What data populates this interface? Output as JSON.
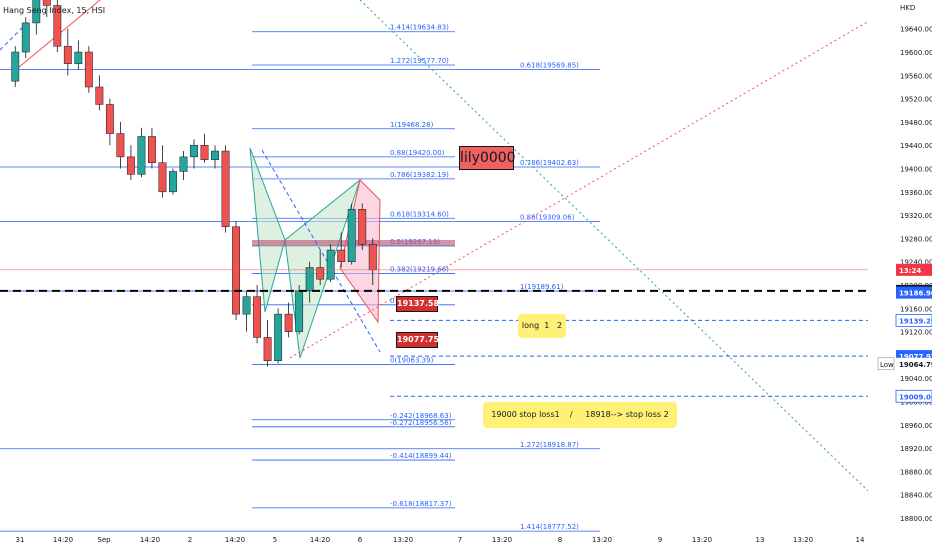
{
  "title": "Hang Seng Index, 15, HSI",
  "watermark": "lily0000",
  "currency": "HKD",
  "colors": {
    "up": "#26a69a",
    "down": "#ef5350",
    "fib": "#2962ff",
    "candle_up": "#ffffff",
    "candle_down": "#131722",
    "alert": "#f23645",
    "note_bg": "#fff176"
  },
  "chart_data": {
    "type": "candlestick",
    "title": "Hang Seng Index, 15, HSI",
    "ylim": [
      18790,
      19690
    ],
    "y_ticks": [
      "19640.00",
      "19600.00",
      "19560.00",
      "19520.00",
      "19480.00",
      "19440.00",
      "19400.00",
      "19360.00",
      "19320.00",
      "19280.00",
      "19240.00",
      "19200.00",
      "19160.00",
      "19120.00",
      "19080.00",
      "19040.00",
      "19000.00",
      "18960.00",
      "18920.00",
      "18880.00",
      "18840.00",
      "18800.00"
    ],
    "x_ticks": [
      "31",
      "14:20",
      "Sep",
      "14:20",
      "2",
      "14:20",
      "5",
      "14:20",
      "6",
      "13:20",
      "7",
      "13:20",
      "8",
      "13:20",
      "9",
      "13:20",
      "13",
      "13:20",
      "14"
    ],
    "price_tags": [
      {
        "label": "19189.96",
        "value": 19189.96,
        "style": "black"
      },
      {
        "label": "19186.96",
        "value": 19186.96,
        "style": "blue"
      },
      {
        "label": "19139.29",
        "value": 19139.29,
        "style": "blue-outline"
      },
      {
        "label": "19077.97",
        "value": 19077.97,
        "style": "blue"
      },
      {
        "label": "19064.79",
        "value": 19064.79,
        "style": "low"
      },
      {
        "label": "19009.00",
        "value": 19009.0,
        "style": "blue-outline"
      },
      {
        "label": "13:24",
        "value": 19226,
        "style": "red"
      }
    ],
    "low_label": "Low",
    "fib_levels_left": [
      {
        "label": "1.414(19634.83)",
        "value": 19634.83
      },
      {
        "label": "1.272(19577.70)",
        "value": 19577.7
      },
      {
        "label": "1(19468.28)",
        "value": 19468.28
      },
      {
        "label": "0.88(19420.00)",
        "value": 19420.0
      },
      {
        "label": "0.786(19382.19)",
        "value": 19382.19
      },
      {
        "label": "0.618(19314.60)",
        "value": 19314.6
      },
      {
        "label": "0.5(19267.13)",
        "value": 19267.13
      },
      {
        "label": "0.382(19219.66)",
        "value": 19219.66
      },
      {
        "label": "0",
        "value": 19166.0
      },
      {
        "label": "0(19063.39)",
        "value": 19063.39
      },
      {
        "label": "-0.242(18968.63)",
        "value": 18968.63
      },
      {
        "label": "-0.272(18956.56)",
        "value": 18956.56
      },
      {
        "label": "-0.414(18899.44)",
        "value": 18899.44
      },
      {
        "label": "-0.618(18817.37)",
        "value": 18817.37
      }
    ],
    "fib_levels_right": [
      {
        "label": "0.618(19569.85)",
        "value": 19569.85
      },
      {
        "label": "0.786(19402.63)",
        "value": 19402.63
      },
      {
        "label": "0.88(19309.06)",
        "value": 19309.06
      },
      {
        "label": "1(19189.61)",
        "value": 19189.61
      },
      {
        "label": "1.272(18918.87)",
        "value": 18918.87
      },
      {
        "label": "1.414(18777.52)",
        "value": 18777.52
      }
    ],
    "targets": [
      {
        "label": "19137.58",
        "value": 19137.58
      },
      {
        "label": "19077.75",
        "value": 19077.75
      }
    ],
    "notes": [
      {
        "text": "long  1   2"
      },
      {
        "text": "19000 stop loss1    /     18918--> stop loss 2"
      }
    ],
    "candles": [
      [
        19550,
        19610,
        19540,
        19600
      ],
      [
        19600,
        19660,
        19590,
        19650
      ],
      [
        19650,
        19700,
        19630,
        19690
      ],
      [
        19690,
        19720,
        19660,
        19680
      ],
      [
        19680,
        19700,
        19600,
        19610
      ],
      [
        19610,
        19640,
        19560,
        19580
      ],
      [
        19580,
        19620,
        19570,
        19600
      ],
      [
        19600,
        19610,
        19530,
        19540
      ],
      [
        19540,
        19560,
        19500,
        19510
      ],
      [
        19510,
        19520,
        19440,
        19460
      ],
      [
        19460,
        19480,
        19400,
        19420
      ],
      [
        19420,
        19440,
        19380,
        19390
      ],
      [
        19390,
        19470,
        19385,
        19455
      ],
      [
        19455,
        19470,
        19400,
        19410
      ],
      [
        19410,
        19440,
        19350,
        19360
      ],
      [
        19360,
        19400,
        19355,
        19395
      ],
      [
        19395,
        19430,
        19380,
        19420
      ],
      [
        19420,
        19450,
        19400,
        19440
      ],
      [
        19440,
        19460,
        19410,
        19415
      ],
      [
        19415,
        19440,
        19400,
        19430
      ],
      [
        19430,
        19440,
        19290,
        19300
      ],
      [
        19300,
        19310,
        19140,
        19150
      ],
      [
        19150,
        19190,
        19120,
        19180
      ],
      [
        19180,
        19200,
        19100,
        19110
      ],
      [
        19110,
        19140,
        19060,
        19070
      ],
      [
        19070,
        19160,
        19065,
        19150
      ],
      [
        19150,
        19170,
        19110,
        19120
      ],
      [
        19120,
        19200,
        19115,
        19190
      ],
      [
        19190,
        19240,
        19170,
        19230
      ],
      [
        19230,
        19260,
        19200,
        19210
      ],
      [
        19210,
        19270,
        19205,
        19260
      ],
      [
        19260,
        19290,
        19230,
        19240
      ],
      [
        19240,
        19340,
        19235,
        19330
      ],
      [
        19330,
        19340,
        19260,
        19270
      ],
      [
        19270,
        19280,
        19200,
        19226
      ]
    ]
  }
}
